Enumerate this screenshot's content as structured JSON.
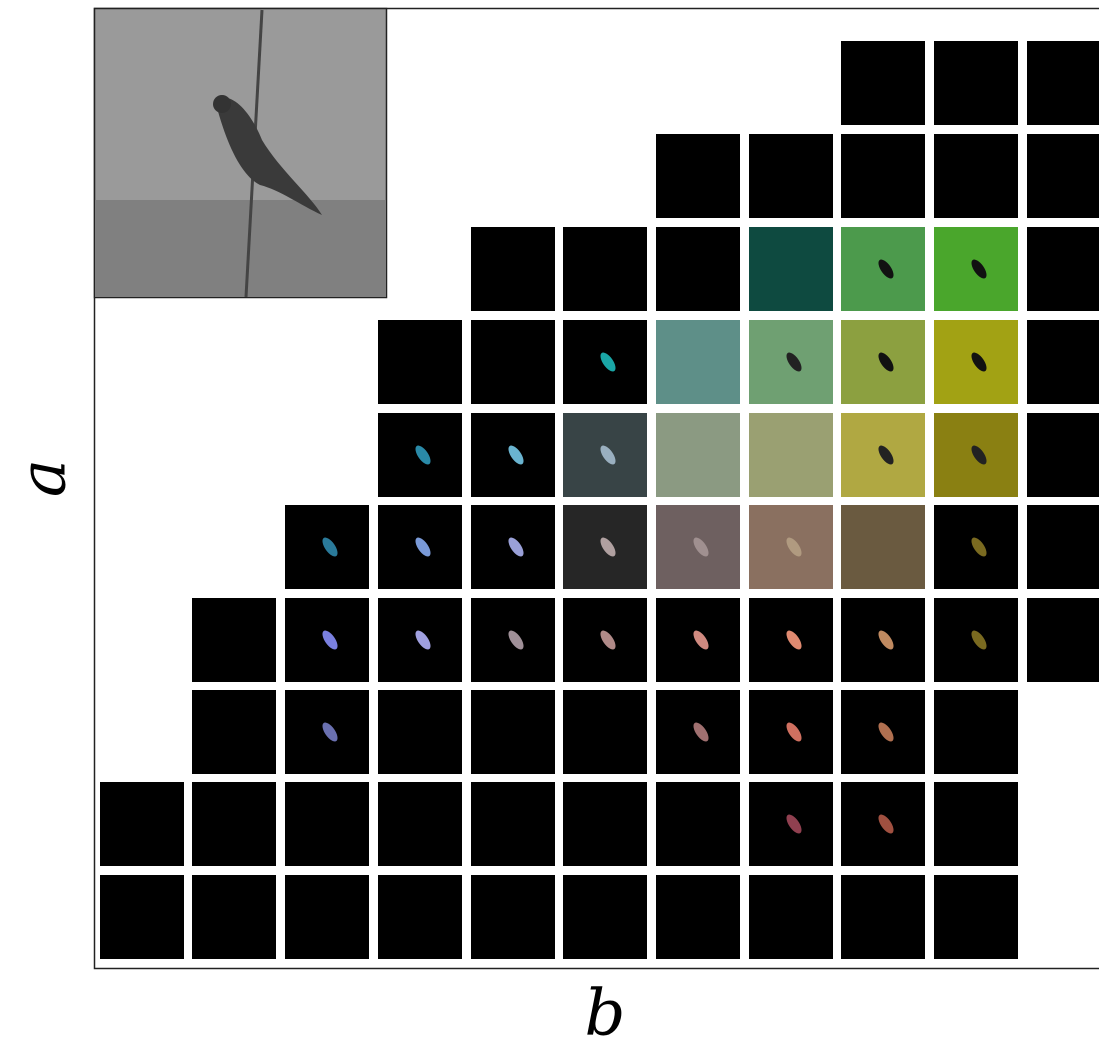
{
  "axes": {
    "y_label": "a",
    "x_label": "b"
  }
}
